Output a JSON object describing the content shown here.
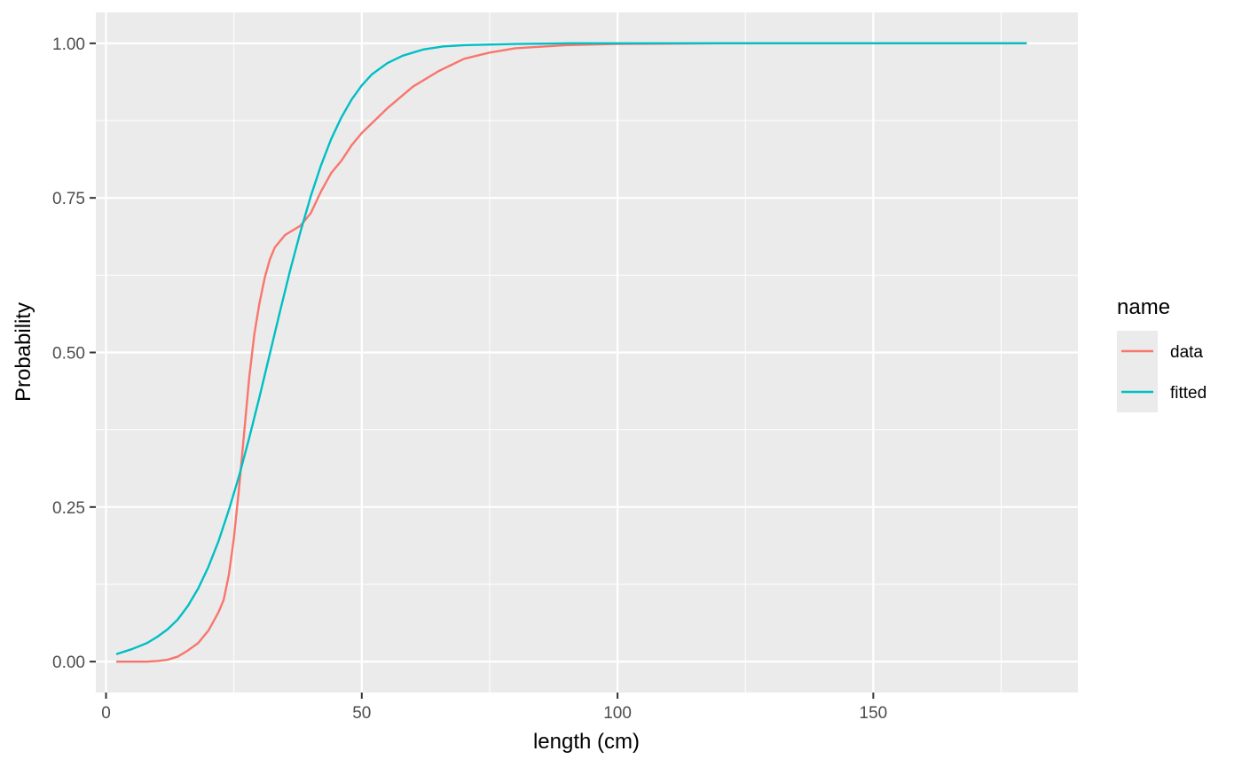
{
  "chart_data": {
    "type": "line",
    "xlabel": "length (cm)",
    "ylabel": "Probability",
    "xlim": [
      -2,
      190
    ],
    "ylim": [
      -0.05,
      1.05
    ],
    "x_ticks": [
      0,
      50,
      100,
      150
    ],
    "x_tick_labels": [
      "0",
      "50",
      "100",
      "150"
    ],
    "y_ticks": [
      0,
      0.25,
      0.5,
      0.75,
      1
    ],
    "y_tick_labels": [
      "0.00",
      "0.25",
      "0.50",
      "0.75",
      "1.00"
    ],
    "grid": true,
    "legend": {
      "title": "name",
      "position": "right"
    },
    "series": [
      {
        "name": "data",
        "color": "#F8766D",
        "x": [
          2,
          4,
          6,
          8,
          10,
          12,
          14,
          16,
          18,
          20,
          22,
          23,
          24,
          25,
          26,
          27,
          28,
          29,
          30,
          31,
          32,
          33,
          34,
          35,
          36,
          38,
          40,
          42,
          44,
          46,
          48,
          50,
          55,
          60,
          65,
          70,
          75,
          80,
          90,
          100,
          120,
          150,
          180
        ],
        "y": [
          0.0,
          0.0,
          0.0,
          0.0,
          0.001,
          0.003,
          0.008,
          0.018,
          0.03,
          0.05,
          0.08,
          0.1,
          0.14,
          0.2,
          0.28,
          0.37,
          0.46,
          0.53,
          0.58,
          0.62,
          0.65,
          0.67,
          0.68,
          0.69,
          0.695,
          0.705,
          0.725,
          0.76,
          0.79,
          0.81,
          0.835,
          0.855,
          0.895,
          0.93,
          0.955,
          0.975,
          0.985,
          0.992,
          0.997,
          0.999,
          1.0,
          1.0,
          1.0
        ]
      },
      {
        "name": "fitted",
        "color": "#00BFC4",
        "x": [
          2,
          5,
          8,
          10,
          12,
          14,
          16,
          18,
          20,
          22,
          24,
          26,
          28,
          30,
          32,
          34,
          36,
          38,
          40,
          42,
          44,
          46,
          48,
          50,
          52,
          55,
          58,
          62,
          66,
          70,
          80,
          90,
          100,
          120,
          150,
          180
        ],
        "y": [
          0.012,
          0.02,
          0.03,
          0.04,
          0.052,
          0.068,
          0.09,
          0.118,
          0.153,
          0.195,
          0.245,
          0.3,
          0.362,
          0.428,
          0.497,
          0.566,
          0.633,
          0.695,
          0.752,
          0.802,
          0.845,
          0.88,
          0.909,
          0.932,
          0.95,
          0.968,
          0.98,
          0.99,
          0.995,
          0.997,
          0.999,
          1.0,
          1.0,
          1.0,
          1.0,
          1.0
        ]
      }
    ]
  }
}
